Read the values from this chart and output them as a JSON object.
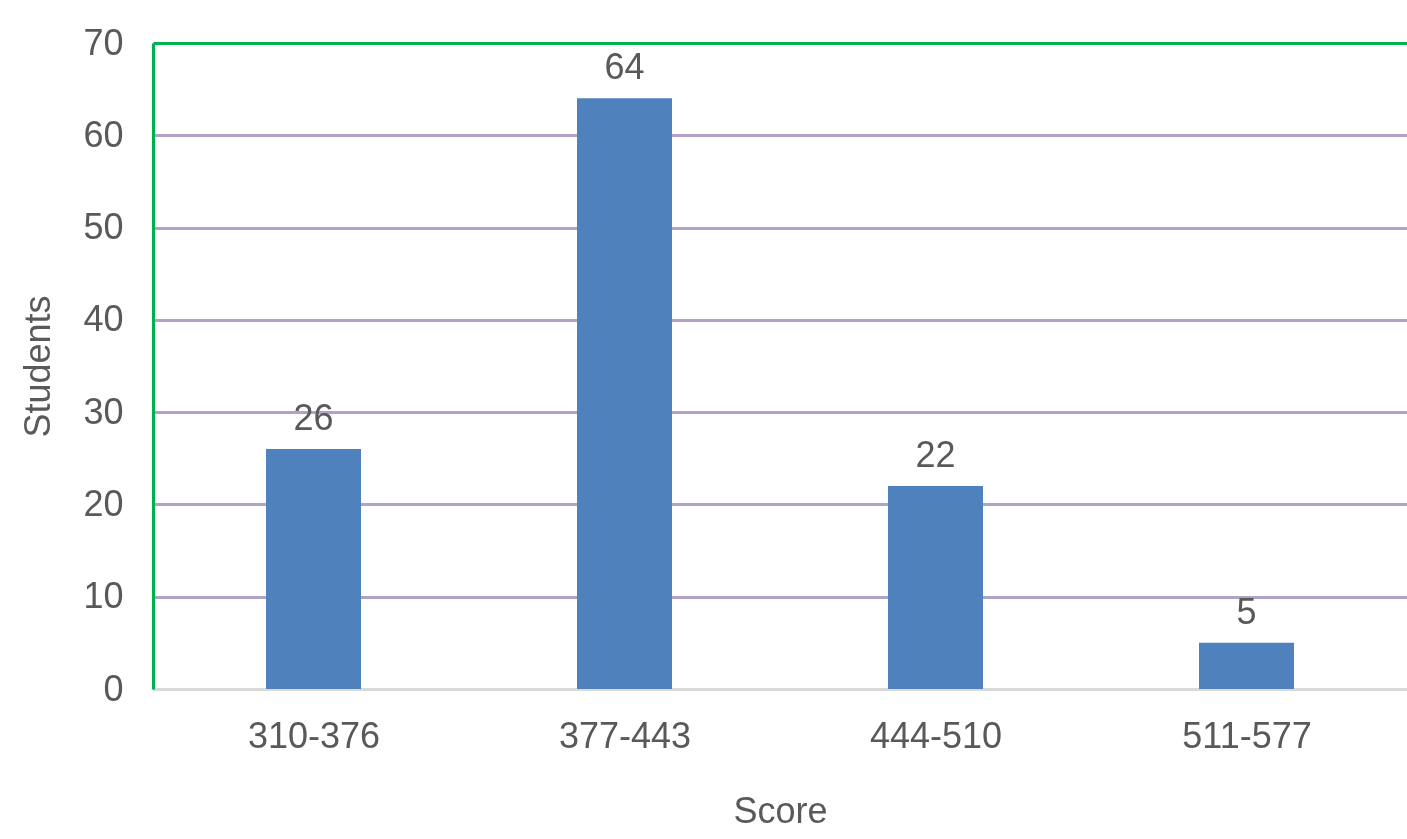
{
  "chart_data": {
    "type": "bar",
    "xlabel": "Score",
    "ylabel": "Students",
    "categories": [
      "310-376",
      "377-443",
      "444-510",
      "511-577"
    ],
    "values": [
      26,
      64,
      22,
      5
    ],
    "color": "#4f81bd",
    "ylim": [
      0,
      70
    ],
    "yticks": [
      0,
      10,
      20,
      30,
      40,
      50,
      60,
      70
    ],
    "grid": "y",
    "data_labels": true
  }
}
